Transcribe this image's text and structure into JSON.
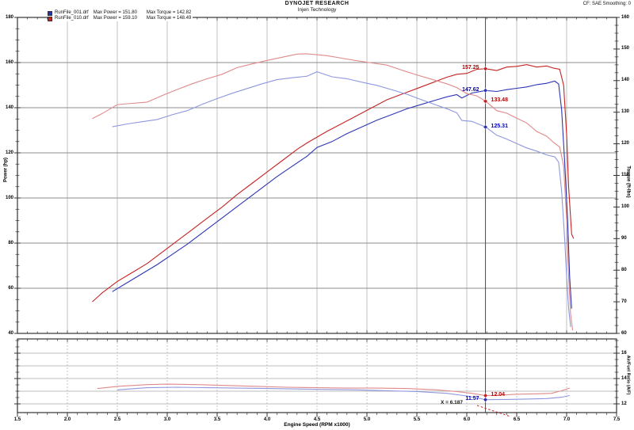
{
  "header": {
    "title": "DYNOJET RESEARCH",
    "subtitle": "Injen Technology",
    "correction_info": "CF: SAE   Smoothing: 0"
  },
  "legend": [
    {
      "color": "#2233bb",
      "file": "RunFile_001.drf",
      "max_power": "Max Power = 151.80",
      "max_torque": "Max Torque = 142.82"
    },
    {
      "color": "#cc2222",
      "file": "RunFile_010.drf",
      "max_power": "Max Power = 159.10",
      "max_torque": "Max Torque = 148.49"
    }
  ],
  "cursor": {
    "label": "X = 6.187",
    "rpm": 6.187
  },
  "axes": {
    "x": {
      "label": "Engine Speed (RPM x1000)",
      "ticks": [
        "1.5",
        "2.0",
        "2.5",
        "3.0",
        "3.5",
        "4.0",
        "4.5",
        "5.0",
        "5.5",
        "6.0",
        "6.5",
        "7.0",
        "7.5"
      ],
      "min": 1.5,
      "max": 7.5
    },
    "power": {
      "label": "Power (hp)",
      "ticks": [
        "180",
        "160",
        "140",
        "120",
        "100",
        "80",
        "60",
        "40"
      ],
      "min": 40,
      "max": 180
    },
    "torque": {
      "label": "Torque (ft-lbs)",
      "ticks": [
        "160",
        "150",
        "140",
        "130",
        "120",
        "110",
        "100",
        "90",
        "80",
        "70",
        "60"
      ],
      "min": 60,
      "max": 160
    },
    "afr": {
      "label": "Air/Fuel Ratio (A/F)",
      "ticks": [
        "16",
        "14",
        "12"
      ]
    }
  },
  "markers": [
    {
      "text": "157.25",
      "value": 157.25,
      "chart": "power",
      "color": "red",
      "side": "left"
    },
    {
      "text": "147.62",
      "value": 147.62,
      "chart": "power",
      "color": "blue",
      "side": "left"
    },
    {
      "text": "133.48",
      "value": 133.48,
      "chart": "torque",
      "color": "red",
      "side": "right"
    },
    {
      "text": "125.31",
      "value": 125.31,
      "chart": "torque",
      "color": "blue",
      "side": "right"
    },
    {
      "text": "12.04",
      "value": 12.04,
      "chart": "afr",
      "color": "red",
      "side": "right"
    },
    {
      "text": "11.57",
      "value": 11.57,
      "chart": "afr",
      "color": "blue",
      "side": "left"
    }
  ],
  "chart_data": [
    {
      "type": "line",
      "name": "power-red-run010",
      "axis": "power",
      "color": "#c42323",
      "points": [
        [
          2.25,
          54
        ],
        [
          2.35,
          58
        ],
        [
          2.5,
          63
        ],
        [
          2.65,
          67
        ],
        [
          2.8,
          71
        ],
        [
          2.95,
          76
        ],
        [
          3.1,
          81
        ],
        [
          3.25,
          86
        ],
        [
          3.4,
          91
        ],
        [
          3.55,
          96
        ],
        [
          3.7,
          101.5
        ],
        [
          3.85,
          106.5
        ],
        [
          4.0,
          111.5
        ],
        [
          4.15,
          116.5
        ],
        [
          4.3,
          121.5
        ],
        [
          4.4,
          124.4
        ],
        [
          4.6,
          129.5
        ],
        [
          4.75,
          133
        ],
        [
          4.9,
          136.5
        ],
        [
          5.05,
          140
        ],
        [
          5.2,
          143.5
        ],
        [
          5.35,
          146
        ],
        [
          5.5,
          148.5
        ],
        [
          5.65,
          151
        ],
        [
          5.8,
          153.5
        ],
        [
          5.9,
          154.8
        ],
        [
          6.0,
          155.2
        ],
        [
          6.1,
          157
        ],
        [
          6.19,
          157.25
        ],
        [
          6.3,
          156.5
        ],
        [
          6.4,
          158
        ],
        [
          6.5,
          158.3
        ],
        [
          6.6,
          159.1
        ],
        [
          6.7,
          158
        ],
        [
          6.8,
          158.5
        ],
        [
          6.87,
          157.5
        ],
        [
          6.93,
          157
        ],
        [
          6.97,
          150
        ],
        [
          7.0,
          128
        ],
        [
          7.02,
          105
        ],
        [
          7.05,
          84
        ],
        [
          7.07,
          82
        ]
      ]
    },
    {
      "type": "line",
      "name": "power-blue-run001",
      "axis": "power",
      "color": "#2d35b5",
      "points": [
        [
          2.45,
          58.5
        ],
        [
          2.6,
          62.5
        ],
        [
          2.75,
          66.5
        ],
        [
          2.9,
          70.5
        ],
        [
          3.05,
          75
        ],
        [
          3.2,
          79.5
        ],
        [
          3.35,
          84.5
        ],
        [
          3.5,
          89.5
        ],
        [
          3.65,
          94.5
        ],
        [
          3.8,
          99.5
        ],
        [
          3.95,
          104.5
        ],
        [
          4.1,
          109.5
        ],
        [
          4.25,
          114
        ],
        [
          4.4,
          118.5
        ],
        [
          4.5,
          122.4
        ],
        [
          4.65,
          125
        ],
        [
          4.8,
          128.5
        ],
        [
          4.95,
          131.5
        ],
        [
          5.1,
          134.5
        ],
        [
          5.25,
          137
        ],
        [
          5.4,
          139.5
        ],
        [
          5.55,
          141.5
        ],
        [
          5.7,
          143.5
        ],
        [
          5.8,
          144.8
        ],
        [
          5.9,
          145.8
        ],
        [
          5.95,
          144.3
        ],
        [
          6.05,
          146.5
        ],
        [
          6.19,
          147.62
        ],
        [
          6.3,
          147.2
        ],
        [
          6.4,
          148
        ],
        [
          6.5,
          148.6
        ],
        [
          6.6,
          149.2
        ],
        [
          6.7,
          150.2
        ],
        [
          6.8,
          150.8
        ],
        [
          6.88,
          151.8
        ],
        [
          6.92,
          150.5
        ],
        [
          6.95,
          139
        ],
        [
          6.98,
          116
        ],
        [
          7.01,
          90
        ],
        [
          7.03,
          65
        ],
        [
          7.05,
          51
        ]
      ]
    },
    {
      "type": "line",
      "name": "torque-red-run010",
      "axis": "torque",
      "color": "#e08a8a",
      "points": [
        [
          2.25,
          128
        ],
        [
          2.35,
          129.6
        ],
        [
          2.5,
          132.4
        ],
        [
          2.65,
          132.8
        ],
        [
          2.8,
          133.2
        ],
        [
          2.95,
          135.3
        ],
        [
          3.1,
          137.2
        ],
        [
          3.25,
          139
        ],
        [
          3.4,
          140.6
        ],
        [
          3.55,
          142
        ],
        [
          3.7,
          144.1
        ],
        [
          3.85,
          145.3
        ],
        [
          4.0,
          146.4
        ],
        [
          4.15,
          147.4
        ],
        [
          4.3,
          148.4
        ],
        [
          4.4,
          148.5
        ],
        [
          4.6,
          147.9
        ],
        [
          4.75,
          147.1
        ],
        [
          4.9,
          146.3
        ],
        [
          5.05,
          145.6
        ],
        [
          5.2,
          144.9
        ],
        [
          5.35,
          143.3
        ],
        [
          5.5,
          141.8
        ],
        [
          5.65,
          140.4
        ],
        [
          5.8,
          139
        ],
        [
          5.9,
          137.8
        ],
        [
          6.0,
          135.9
        ],
        [
          6.1,
          135.2
        ],
        [
          6.19,
          133.48
        ],
        [
          6.3,
          130.5
        ],
        [
          6.4,
          129.7
        ],
        [
          6.5,
          128.1
        ],
        [
          6.6,
          126.6
        ],
        [
          6.7,
          123.9
        ],
        [
          6.8,
          122.4
        ],
        [
          6.87,
          120.4
        ],
        [
          6.93,
          119
        ],
        [
          6.97,
          113
        ],
        [
          7.0,
          96
        ],
        [
          7.02,
          78
        ],
        [
          7.04,
          66
        ],
        [
          7.06,
          61
        ]
      ]
    },
    {
      "type": "line",
      "name": "torque-blue-run001",
      "axis": "torque",
      "color": "#8e97dd",
      "points": [
        [
          2.45,
          125.4
        ],
        [
          2.6,
          126.3
        ],
        [
          2.75,
          127
        ],
        [
          2.9,
          127.7
        ],
        [
          3.05,
          129.2
        ],
        [
          3.2,
          130.5
        ],
        [
          3.35,
          132.5
        ],
        [
          3.5,
          134.3
        ],
        [
          3.65,
          136
        ],
        [
          3.8,
          137.5
        ],
        [
          3.95,
          139
        ],
        [
          4.1,
          140.3
        ],
        [
          4.25,
          140.9
        ],
        [
          4.4,
          141.4
        ],
        [
          4.5,
          142.8
        ],
        [
          4.65,
          141.2
        ],
        [
          4.8,
          140.6
        ],
        [
          4.95,
          139.5
        ],
        [
          5.1,
          138.5
        ],
        [
          5.25,
          137.1
        ],
        [
          5.4,
          135.7
        ],
        [
          5.55,
          133.9
        ],
        [
          5.7,
          132.2
        ],
        [
          5.8,
          131.1
        ],
        [
          5.9,
          129.8
        ],
        [
          5.95,
          127.4
        ],
        [
          6.05,
          127.1
        ],
        [
          6.19,
          125.31
        ],
        [
          6.3,
          122.7
        ],
        [
          6.4,
          121.5
        ],
        [
          6.5,
          120.1
        ],
        [
          6.6,
          118.7
        ],
        [
          6.7,
          117.7
        ],
        [
          6.8,
          116.5
        ],
        [
          6.88,
          115.9
        ],
        [
          6.92,
          114.2
        ],
        [
          6.95,
          105
        ],
        [
          6.98,
          90
        ],
        [
          7.0,
          78
        ],
        [
          7.02,
          68
        ],
        [
          7.04,
          62
        ]
      ]
    },
    {
      "type": "line",
      "name": "afr-red-run010",
      "axis": "afr",
      "color": "#e08a8a",
      "points": [
        [
          2.3,
          12.85
        ],
        [
          2.5,
          13.1
        ],
        [
          2.8,
          13.3
        ],
        [
          3.0,
          13.35
        ],
        [
          3.3,
          13.3
        ],
        [
          3.6,
          13.2
        ],
        [
          3.9,
          13.1
        ],
        [
          4.2,
          13.0
        ],
        [
          4.5,
          12.95
        ],
        [
          4.8,
          12.9
        ],
        [
          5.1,
          12.9
        ],
        [
          5.4,
          12.85
        ],
        [
          5.7,
          12.7
        ],
        [
          5.9,
          12.5
        ],
        [
          6.05,
          12.3
        ],
        [
          6.19,
          12.04
        ],
        [
          6.35,
          12.1
        ],
        [
          6.5,
          12.2
        ],
        [
          6.7,
          12.25
        ],
        [
          6.85,
          12.3
        ],
        [
          6.95,
          12.6
        ],
        [
          7.03,
          12.9
        ]
      ]
    },
    {
      "type": "line",
      "name": "afr-blue-run001",
      "axis": "afr",
      "color": "#8e97dd",
      "points": [
        [
          2.5,
          12.7
        ],
        [
          2.8,
          12.95
        ],
        [
          3.1,
          13.0
        ],
        [
          3.4,
          12.95
        ],
        [
          3.7,
          12.9
        ],
        [
          4.0,
          12.85
        ],
        [
          4.3,
          12.8
        ],
        [
          4.6,
          12.75
        ],
        [
          4.9,
          12.7
        ],
        [
          5.2,
          12.6
        ],
        [
          5.5,
          12.5
        ],
        [
          5.8,
          12.3
        ],
        [
          6.0,
          12.0
        ],
        [
          6.19,
          11.57
        ],
        [
          6.4,
          11.6
        ],
        [
          6.6,
          11.65
        ],
        [
          6.8,
          11.7
        ],
        [
          6.95,
          11.85
        ],
        [
          7.03,
          12.05
        ]
      ]
    }
  ]
}
